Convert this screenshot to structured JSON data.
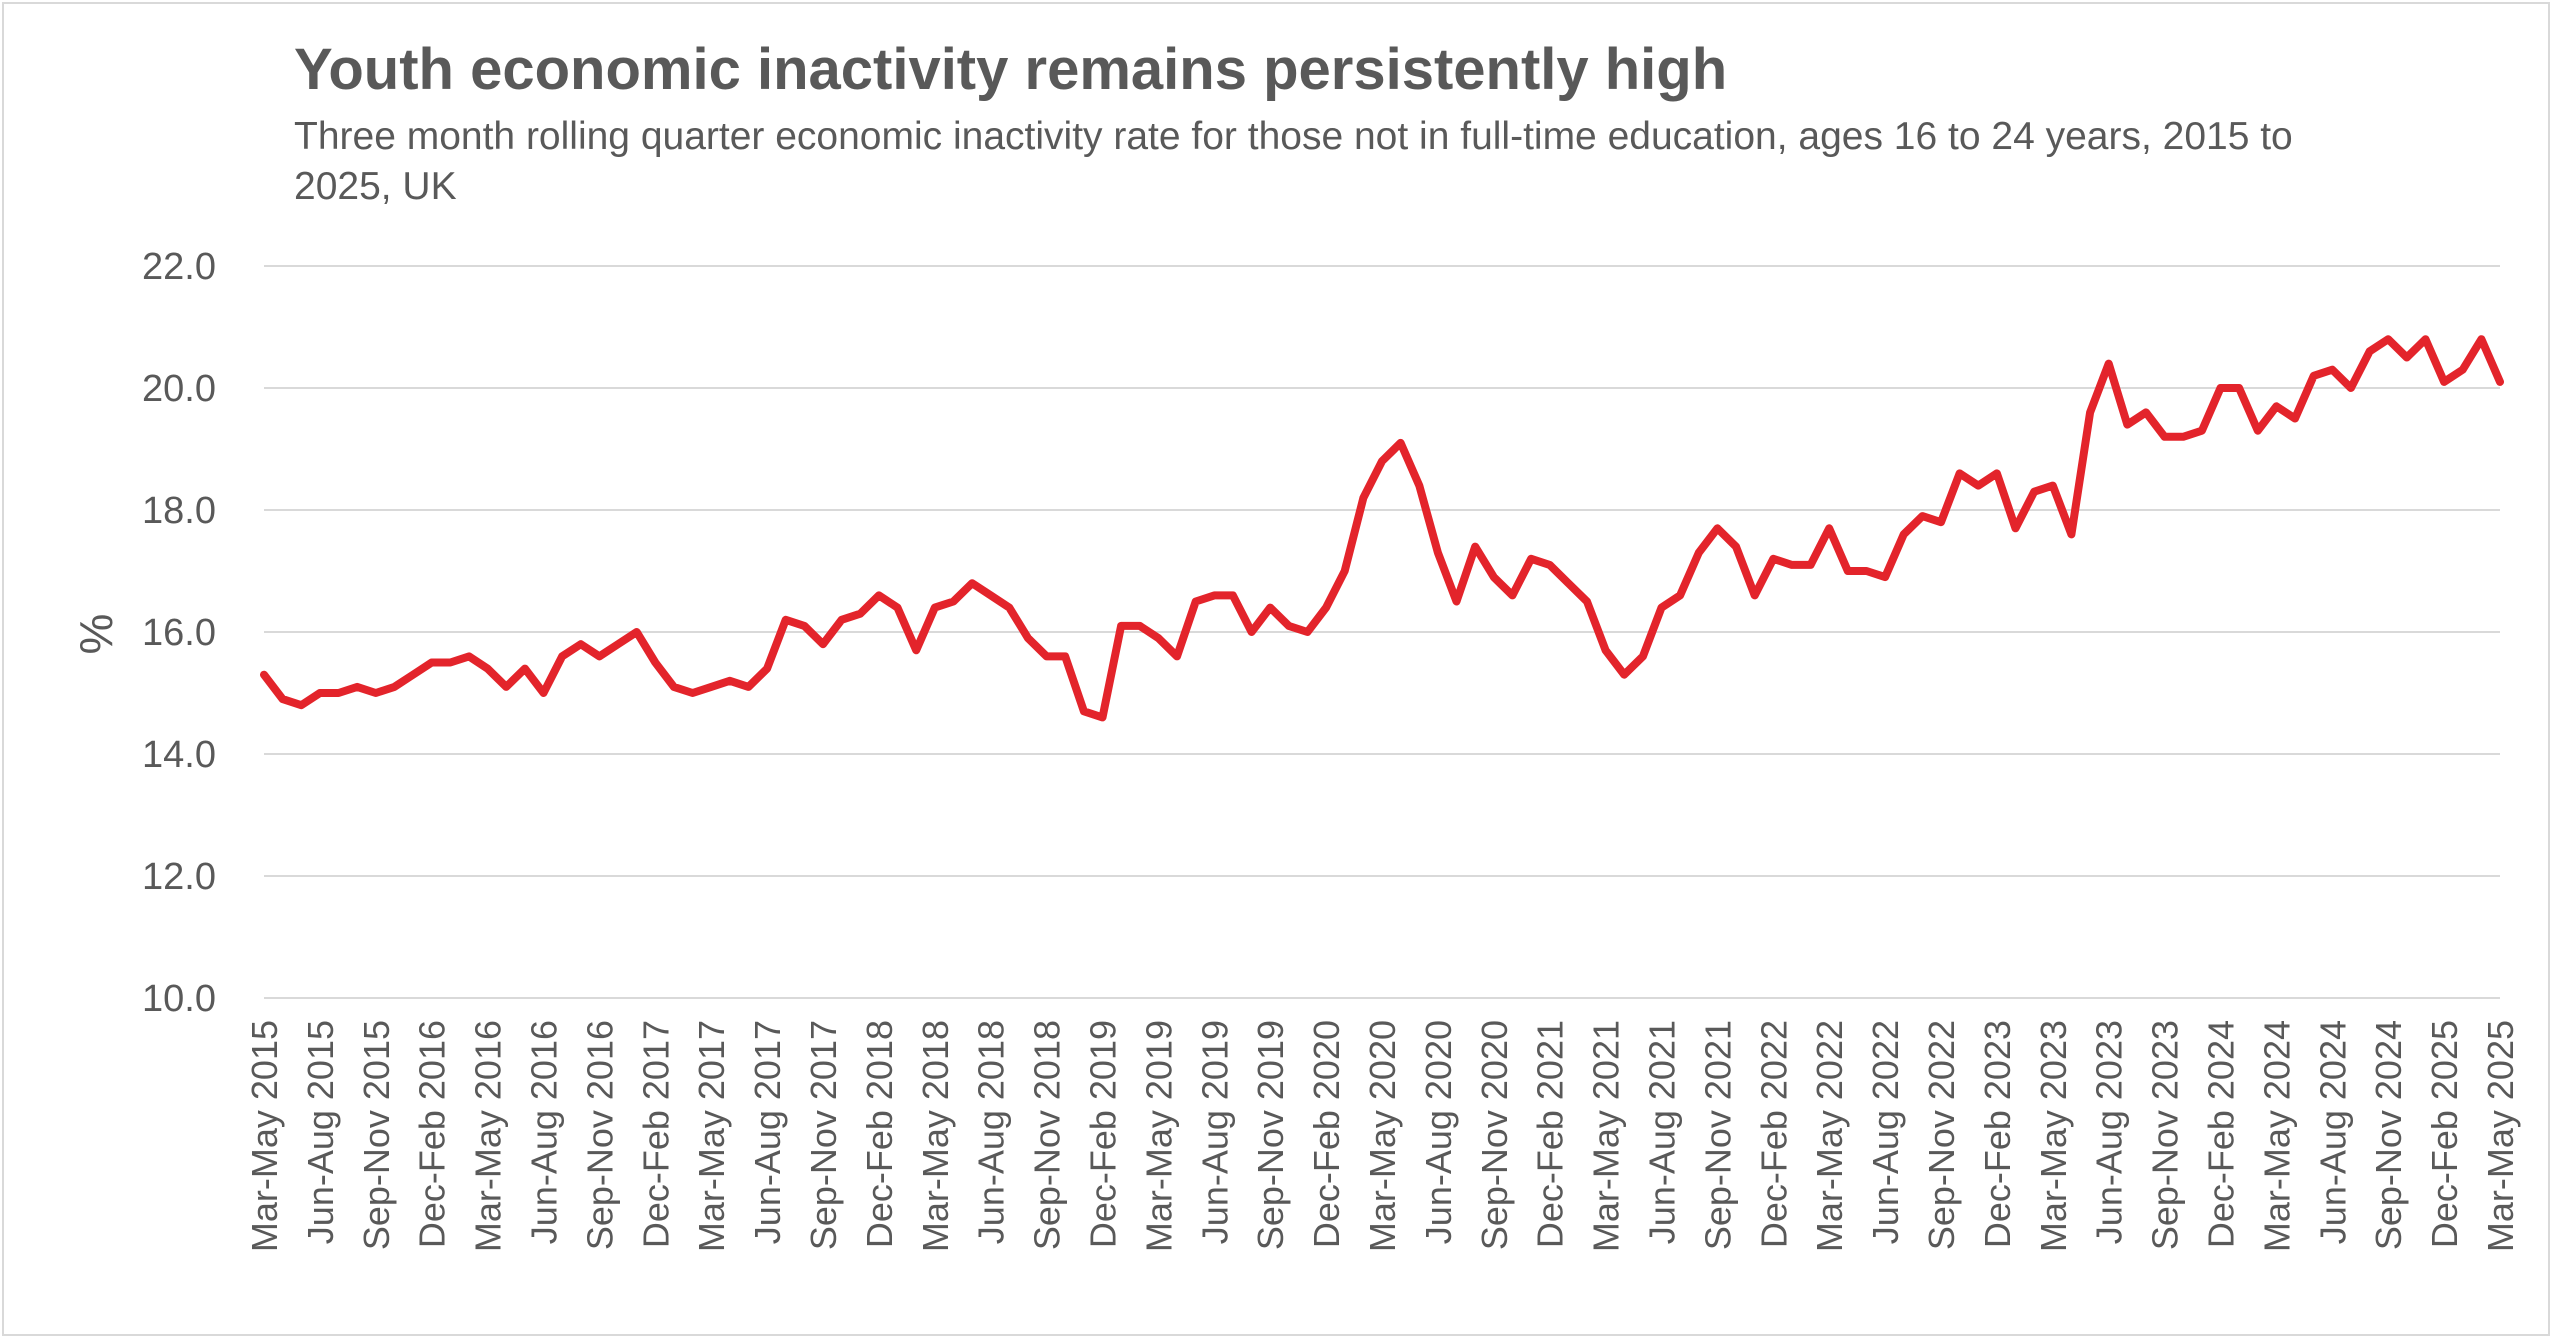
{
  "chart_data": {
    "type": "line",
    "title": "Youth economic inactivity remains persistently high",
    "subtitle": "Three month rolling quarter economic inactivity rate for those not in full-time education, ages 16 to 24 years, 2015 to 2025, UK",
    "xlabel": "",
    "ylabel": "%",
    "ylim": [
      10,
      22
    ],
    "yticks": [
      "10.0",
      "12.0",
      "14.0",
      "16.0",
      "18.0",
      "20.0",
      "22.0"
    ],
    "grid": "horizontal",
    "legend": "none",
    "line_color": "#e3242b",
    "x": [
      "Mar-May 2015",
      "Apr-Jun 2015",
      "May-Jul 2015",
      "Jun-Aug 2015",
      "Jul-Sep 2015",
      "Aug-Oct 2015",
      "Sep-Nov 2015",
      "Oct-Dec 2015",
      "Nov-Jan 2016",
      "Dec-Feb 2016",
      "Jan-Mar 2016",
      "Feb-Apr 2016",
      "Mar-May 2016",
      "Apr-Jun 2016",
      "May-Jul 2016",
      "Jun-Aug 2016",
      "Jul-Sep 2016",
      "Aug-Oct 2016",
      "Sep-Nov 2016",
      "Oct-Dec 2016",
      "Nov-Jan 2017",
      "Dec-Feb 2017",
      "Jan-Mar 2017",
      "Feb-Apr 2017",
      "Mar-May 2017",
      "Apr-Jun 2017",
      "May-Jul 2017",
      "Jun-Aug 2017",
      "Jul-Sep 2017",
      "Aug-Oct 2017",
      "Sep-Nov 2017",
      "Oct-Dec 2017",
      "Nov-Jan 2018",
      "Dec-Feb 2018",
      "Jan-Mar 2018",
      "Feb-Apr 2018",
      "Mar-May 2018",
      "Apr-Jun 2018",
      "May-Jul 2018",
      "Jun-Aug 2018",
      "Jul-Sep 2018",
      "Aug-Oct 2018",
      "Sep-Nov 2018",
      "Oct-Dec 2018",
      "Nov-Jan 2019",
      "Dec-Feb 2019",
      "Jan-Mar 2019",
      "Feb-Apr 2019",
      "Mar-May 2019",
      "Apr-Jun 2019",
      "May-Jul 2019",
      "Jun-Aug 2019",
      "Jul-Sep 2019",
      "Aug-Oct 2019",
      "Sep-Nov 2019",
      "Oct-Dec 2019",
      "Nov-Jan 2020",
      "Dec-Feb 2020",
      "Jan-Mar 2020",
      "Feb-Apr 2020",
      "Mar-May 2020",
      "Apr-Jun 2020",
      "May-Jul 2020",
      "Jun-Aug 2020",
      "Jul-Sep 2020",
      "Aug-Oct 2020",
      "Sep-Nov 2020",
      "Oct-Dec 2020",
      "Nov-Jan 2021",
      "Dec-Feb 2021",
      "Jan-Mar 2021",
      "Feb-Apr 2021",
      "Mar-May 2021",
      "Apr-Jun 2021",
      "May-Jul 2021",
      "Jun-Aug 2021",
      "Jul-Sep 2021",
      "Aug-Oct 2021",
      "Sep-Nov 2021",
      "Oct-Dec 2021",
      "Nov-Jan 2022",
      "Dec-Feb 2022",
      "Jan-Mar 2022",
      "Feb-Apr 2022",
      "Mar-May 2022",
      "Apr-Jun 2022",
      "May-Jul 2022",
      "Jun-Aug 2022",
      "Jul-Sep 2022",
      "Aug-Oct 2022",
      "Sep-Nov 2022",
      "Oct-Dec 2022",
      "Nov-Jan 2023",
      "Dec-Feb 2023",
      "Jan-Mar 2023",
      "Feb-Apr 2023",
      "Mar-May 2023",
      "Apr-Jun 2023",
      "May-Jul 2023",
      "Jun-Aug 2023",
      "Jul-Sep 2023",
      "Aug-Oct 2023",
      "Sep-Nov 2023",
      "Oct-Dec 2023",
      "Nov-Jan 2024",
      "Dec-Feb 2024",
      "Jan-Mar 2024",
      "Feb-Apr 2024",
      "Mar-May 2024",
      "Apr-Jun 2024",
      "May-Jul 2024",
      "Jun-Aug 2024",
      "Jul-Sep 2024",
      "Aug-Oct 2024",
      "Sep-Nov 2024",
      "Oct-Dec 2024",
      "Nov-Jan 2025",
      "Dec-Feb 2025",
      "Jan-Mar 2025",
      "Feb-Apr 2025",
      "Mar-May 2025"
    ],
    "x_tick_labels": [
      "Mar-May 2015",
      "Jun-Aug 2015",
      "Sep-Nov 2015",
      "Dec-Feb 2016",
      "Mar-May 2016",
      "Jun-Aug 2016",
      "Sep-Nov 2016",
      "Dec-Feb 2017",
      "Mar-May 2017",
      "Jun-Aug 2017",
      "Sep-Nov 2017",
      "Dec-Feb 2018",
      "Mar-May 2018",
      "Jun-Aug 2018",
      "Sep-Nov 2018",
      "Dec-Feb 2019",
      "Mar-May 2019",
      "Jun-Aug 2019",
      "Sep-Nov 2019",
      "Dec-Feb 2020",
      "Mar-May 2020",
      "Jun-Aug 2020",
      "Sep-Nov 2020",
      "Dec-Feb 2021",
      "Mar-May 2021",
      "Jun-Aug 2021",
      "Sep-Nov 2021",
      "Dec-Feb 2022",
      "Mar-May 2022",
      "Jun-Aug 2022",
      "Sep-Nov 2022",
      "Dec-Feb 2023",
      "Mar-May 2023",
      "Jun-Aug 2023",
      "Sep-Nov 2023",
      "Dec-Feb 2024",
      "Mar-May 2024",
      "Jun-Aug 2024",
      "Sep-Nov 2024",
      "Dec-Feb 2025",
      "Mar-May 2025"
    ],
    "values": [
      15.3,
      14.9,
      14.8,
      15.0,
      15.0,
      15.1,
      15.0,
      15.1,
      15.3,
      15.5,
      15.5,
      15.6,
      15.4,
      15.1,
      15.4,
      15.0,
      15.6,
      15.8,
      15.6,
      15.8,
      16.0,
      15.5,
      15.1,
      15.0,
      15.1,
      15.2,
      15.1,
      15.4,
      16.2,
      16.1,
      15.8,
      16.2,
      16.3,
      16.6,
      16.4,
      15.7,
      16.4,
      16.5,
      16.8,
      16.6,
      16.4,
      15.9,
      15.6,
      15.6,
      14.7,
      14.6,
      16.1,
      16.1,
      15.9,
      15.6,
      16.5,
      16.6,
      16.6,
      16.0,
      16.4,
      16.1,
      16.0,
      16.4,
      17.0,
      18.2,
      18.8,
      19.1,
      18.4,
      17.3,
      16.5,
      17.4,
      16.9,
      16.6,
      17.2,
      17.1,
      16.8,
      16.5,
      15.7,
      15.3,
      15.6,
      16.4,
      16.6,
      17.3,
      17.7,
      17.4,
      16.6,
      17.2,
      17.1,
      17.1,
      17.7,
      17.0,
      17.0,
      16.9,
      17.6,
      17.9,
      17.8,
      18.6,
      18.4,
      18.6,
      17.7,
      18.3,
      18.4,
      17.6,
      19.6,
      20.4,
      19.4,
      19.6,
      19.2,
      19.2,
      19.3,
      20.0,
      20.0,
      19.3,
      19.7,
      19.5,
      20.2,
      20.3,
      20.0,
      20.6,
      20.8,
      20.5,
      20.8,
      20.1,
      20.3,
      20.8,
      20.1
    ]
  }
}
